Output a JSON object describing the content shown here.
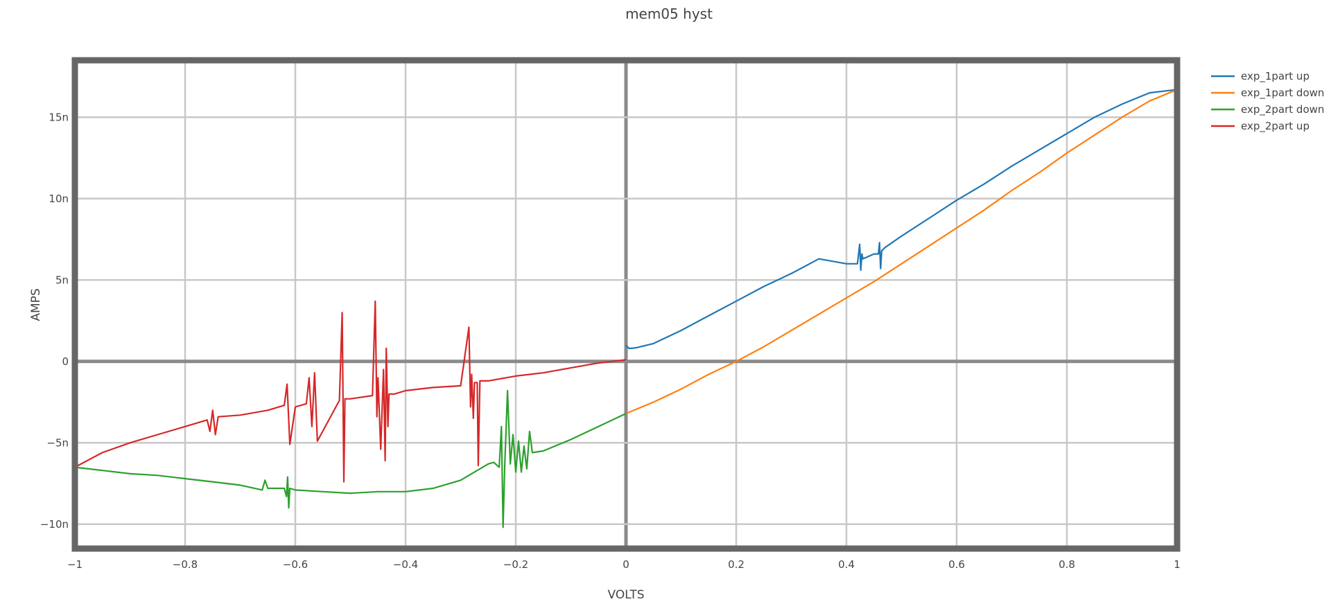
{
  "chart_data": {
    "type": "line",
    "title": "mem05 hyst",
    "xlabel": "VOLTS",
    "ylabel": "AMPS",
    "xlim": [
      -1,
      1
    ],
    "ylim": [
      -11.5,
      18.5
    ],
    "y_unit_suffix": "n",
    "grid": true,
    "legend_position": "top-right",
    "x_ticks": [
      {
        "value": -1,
        "label": "−1"
      },
      {
        "value": -0.8,
        "label": "−0.8"
      },
      {
        "value": -0.6,
        "label": "−0.6"
      },
      {
        "value": -0.4,
        "label": "−0.4"
      },
      {
        "value": -0.2,
        "label": "−0.2"
      },
      {
        "value": 0,
        "label": "0"
      },
      {
        "value": 0.2,
        "label": "0.2"
      },
      {
        "value": 0.4,
        "label": "0.4"
      },
      {
        "value": 0.6,
        "label": "0.6"
      },
      {
        "value": 0.8,
        "label": "0.8"
      },
      {
        "value": 1,
        "label": "1"
      }
    ],
    "y_ticks": [
      {
        "value": -10,
        "label": "−10n"
      },
      {
        "value": -5,
        "label": "−5n"
      },
      {
        "value": 0,
        "label": "0"
      },
      {
        "value": 5,
        "label": "5n"
      },
      {
        "value": 10,
        "label": "10n"
      },
      {
        "value": 15,
        "label": "15n"
      }
    ],
    "series": [
      {
        "name": "exp_1part up",
        "color": "#1f77b4",
        "x": [
          0.0,
          0.005,
          0.01,
          0.02,
          0.05,
          0.1,
          0.15,
          0.2,
          0.25,
          0.3,
          0.35,
          0.4,
          0.42,
          0.424,
          0.426,
          0.428,
          0.43,
          0.45,
          0.458,
          0.46,
          0.462,
          0.464,
          0.47,
          0.5,
          0.55,
          0.6,
          0.65,
          0.7,
          0.75,
          0.8,
          0.85,
          0.9,
          0.95,
          1.0
        ],
        "y": [
          1.0,
          0.8,
          0.8,
          0.85,
          1.1,
          1.9,
          2.8,
          3.7,
          4.6,
          5.4,
          6.3,
          6.0,
          6.0,
          7.2,
          5.6,
          6.6,
          6.3,
          6.6,
          6.6,
          7.3,
          5.7,
          6.8,
          7.0,
          7.7,
          8.8,
          9.9,
          10.9,
          12.0,
          13.0,
          14.0,
          15.0,
          15.8,
          16.5,
          16.7
        ]
      },
      {
        "name": "exp_1part down",
        "color": "#ff7f0e",
        "x": [
          0.0,
          0.05,
          0.1,
          0.15,
          0.2,
          0.25,
          0.3,
          0.35,
          0.4,
          0.45,
          0.5,
          0.55,
          0.6,
          0.65,
          0.7,
          0.75,
          0.8,
          0.85,
          0.9,
          0.95,
          1.0
        ],
        "y": [
          -3.2,
          -2.5,
          -1.7,
          -0.8,
          0.0,
          0.9,
          1.9,
          2.9,
          3.9,
          4.9,
          6.0,
          7.1,
          8.2,
          9.3,
          10.5,
          11.6,
          12.8,
          13.9,
          15.0,
          16.0,
          16.7
        ]
      },
      {
        "name": "exp_2part down",
        "color": "#2ca02c",
        "x": [
          0.0,
          -0.05,
          -0.1,
          -0.15,
          -0.17,
          -0.175,
          -0.18,
          -0.185,
          -0.19,
          -0.195,
          -0.2,
          -0.205,
          -0.21,
          -0.215,
          -0.22,
          -0.223,
          -0.226,
          -0.23,
          -0.24,
          -0.25,
          -0.3,
          -0.35,
          -0.4,
          -0.45,
          -0.5,
          -0.55,
          -0.6,
          -0.61,
          -0.612,
          -0.614,
          -0.616,
          -0.62,
          -0.65,
          -0.655,
          -0.66,
          -0.7,
          -0.75,
          -0.8,
          -0.85,
          -0.9,
          -0.95,
          -1.0
        ],
        "y": [
          -3.2,
          -4.0,
          -4.8,
          -5.5,
          -5.6,
          -4.3,
          -6.6,
          -5.2,
          -6.8,
          -4.9,
          -6.8,
          -4.5,
          -6.3,
          -1.8,
          -6.4,
          -10.2,
          -4.0,
          -6.5,
          -6.2,
          -6.3,
          -7.3,
          -7.8,
          -8.0,
          -8.0,
          -8.1,
          -8.0,
          -7.9,
          -7.8,
          -9.0,
          -7.1,
          -8.3,
          -7.8,
          -7.8,
          -7.3,
          -7.9,
          -7.6,
          -7.4,
          -7.2,
          -7.0,
          -6.9,
          -6.7,
          -6.5
        ]
      },
      {
        "name": "exp_2part up",
        "color": "#d62728",
        "x": [
          -1.0,
          -0.95,
          -0.9,
          -0.85,
          -0.8,
          -0.76,
          -0.755,
          -0.75,
          -0.745,
          -0.74,
          -0.7,
          -0.65,
          -0.62,
          -0.615,
          -0.61,
          -0.6,
          -0.58,
          -0.575,
          -0.57,
          -0.565,
          -0.56,
          -0.52,
          -0.515,
          -0.512,
          -0.51,
          -0.5,
          -0.46,
          -0.455,
          -0.452,
          -0.45,
          -0.445,
          -0.44,
          -0.437,
          -0.435,
          -0.432,
          -0.43,
          -0.42,
          -0.4,
          -0.35,
          -0.3,
          -0.285,
          -0.282,
          -0.28,
          -0.277,
          -0.275,
          -0.27,
          -0.268,
          -0.265,
          -0.25,
          -0.2,
          -0.15,
          -0.1,
          -0.05,
          0.0
        ],
        "y": [
          -6.5,
          -5.6,
          -5.0,
          -4.5,
          -4.0,
          -3.6,
          -4.3,
          -3.0,
          -4.5,
          -3.4,
          -3.3,
          -3.0,
          -2.7,
          -1.4,
          -5.1,
          -2.8,
          -2.6,
          -1.0,
          -4.0,
          -0.7,
          -4.9,
          -2.4,
          3.0,
          -7.4,
          -2.3,
          -2.3,
          -2.1,
          3.7,
          -3.4,
          -1.0,
          -5.4,
          -0.5,
          -6.1,
          0.8,
          -4.0,
          -2.0,
          -2.0,
          -1.8,
          -1.6,
          -1.5,
          2.1,
          -2.8,
          -0.8,
          -3.5,
          -1.3,
          -1.3,
          -6.4,
          -1.2,
          -1.2,
          -0.9,
          -0.7,
          -0.4,
          -0.1,
          0.1
        ]
      }
    ]
  }
}
